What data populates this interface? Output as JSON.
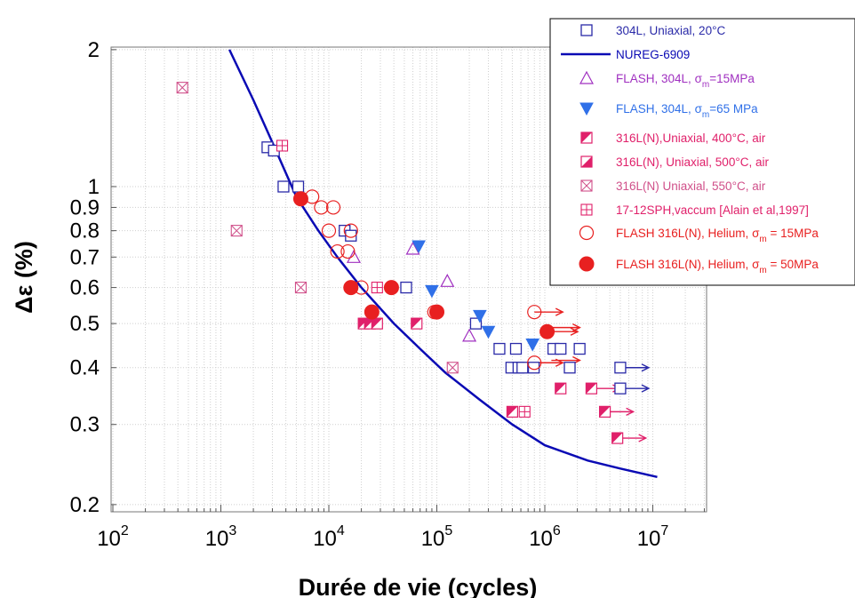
{
  "chart_data": {
    "type": "scatter",
    "xlabel": "Durée de vie (cycles)",
    "ylabel": "Δε (%)",
    "xscale": "log",
    "yscale": "log",
    "xlim": [
      100,
      30000000
    ],
    "ylim": [
      0.19,
      2.0
    ],
    "grid": true,
    "legend_position": "top-right",
    "x_ticks": [
      {
        "value": 100,
        "base": "10",
        "exp": "2"
      },
      {
        "value": 1000,
        "base": "10",
        "exp": "3"
      },
      {
        "value": 10000,
        "base": "10",
        "exp": "4"
      },
      {
        "value": 100000,
        "base": "10",
        "exp": "5"
      },
      {
        "value": 1000000,
        "base": "10",
        "exp": "6"
      },
      {
        "value": 10000000,
        "base": "10",
        "exp": "7"
      }
    ],
    "y_ticks": [
      {
        "value": 0.2,
        "label": "0.2"
      },
      {
        "value": 0.3,
        "label": "0.3"
      },
      {
        "value": 0.4,
        "label": "0.4"
      },
      {
        "value": 0.5,
        "label": "0.5"
      },
      {
        "value": 0.6,
        "label": "0.6"
      },
      {
        "value": 0.7,
        "label": "0.7"
      },
      {
        "value": 0.8,
        "label": "0.8"
      },
      {
        "value": 0.9,
        "label": "0.9"
      },
      {
        "value": 1.0,
        "label": "1"
      },
      {
        "value": 2.0,
        "label": "2"
      }
    ],
    "series": [
      {
        "id": "s304L",
        "name": "304L, Uniaxial, 20°C",
        "legend": [
          "304L, Uniaxial, 20°C"
        ],
        "marker": "square-open",
        "color": "#2a2aa8",
        "points": [
          [
            2700,
            1.22
          ],
          [
            3100,
            1.2
          ],
          [
            3800,
            1.0
          ],
          [
            5200,
            1.0
          ],
          [
            14000,
            0.8
          ],
          [
            16000,
            0.78
          ],
          [
            52000,
            0.6
          ],
          [
            230000,
            0.5
          ],
          [
            380000,
            0.44
          ],
          [
            490000,
            0.4
          ],
          [
            540000,
            0.44
          ],
          [
            570000,
            0.4
          ],
          [
            620000,
            0.4
          ],
          [
            790000,
            0.4
          ],
          [
            1200000,
            0.44
          ],
          [
            1400000,
            0.44
          ],
          [
            1700000,
            0.4
          ],
          [
            2100000,
            0.44
          ]
        ]
      },
      {
        "id": "sNUREG",
        "name": "NUREG-6909",
        "legend": [
          "NUREG-6909"
        ],
        "marker": "line",
        "color": "#0a0ab4",
        "points": [
          [
            1200,
            2.0
          ],
          [
            2000,
            1.55
          ],
          [
            3000,
            1.25
          ],
          [
            5000,
            0.95
          ],
          [
            8000,
            0.8
          ],
          [
            12000,
            0.7
          ],
          [
            20000,
            0.6
          ],
          [
            40000,
            0.5
          ],
          [
            70000,
            0.44
          ],
          [
            120000,
            0.39
          ],
          [
            250000,
            0.34
          ],
          [
            500000,
            0.3
          ],
          [
            1000000,
            0.27
          ],
          [
            2500000,
            0.25
          ],
          [
            5000000,
            0.24
          ],
          [
            11000000,
            0.23
          ]
        ]
      },
      {
        "id": "sFlash304L15",
        "name": "FLASH, 304L, σm=15MPa",
        "legend": [
          "FLASH, 304L, ",
          "σ",
          "m",
          "=15MPa"
        ],
        "marker": "triangle-up-open",
        "color": "#a030c0",
        "points": [
          [
            17000,
            0.7
          ],
          [
            60000,
            0.73
          ],
          [
            125000,
            0.62
          ],
          [
            200000,
            0.47
          ]
        ]
      },
      {
        "id": "sFlash304L65",
        "name": "FLASH, 304L, σm=65 MPa",
        "legend": [
          "FLASH, 304L, ",
          "σ",
          "m",
          "=65 MPa"
        ],
        "marker": "triangle-down-filled",
        "color": "#3070e8",
        "points": [
          [
            68000,
            0.74
          ],
          [
            90000,
            0.59
          ],
          [
            250000,
            0.52
          ],
          [
            300000,
            0.48
          ],
          [
            770000,
            0.45
          ]
        ]
      },
      {
        "id": "s316L400",
        "name": "316L(N),Uniaxial, 400°C, air",
        "legend": [
          "316L(N),Uniaxial, 400°C, air"
        ],
        "marker": "half-square-lower-left",
        "color": "#e0206a",
        "points": [
          [
            21000,
            0.5
          ],
          [
            24000,
            0.5
          ],
          [
            28000,
            0.5
          ],
          [
            65000,
            0.5
          ],
          [
            500000,
            0.32
          ],
          [
            1400000,
            0.36
          ],
          [
            2700000,
            0.36
          ],
          [
            3600000,
            0.32
          ],
          [
            4700000,
            0.28
          ]
        ]
      },
      {
        "id": "s316L500",
        "name": "316L(N), Uniaxial, 500°C, air",
        "legend": [
          "316L(N), Uniaxial, 500°C, air"
        ],
        "marker": "half-square-lower-right",
        "color": "#e0206a",
        "points": []
      },
      {
        "id": "s316L550",
        "name": "316L(N) Uniaxial, 550°C, air",
        "legend": [
          "316L(N) Uniaxial, 550°C, air"
        ],
        "marker": "square-x",
        "color": "#d0508a",
        "points": [
          [
            440,
            1.65
          ],
          [
            1400,
            0.8
          ],
          [
            5500,
            0.6
          ],
          [
            140000,
            0.4
          ]
        ]
      },
      {
        "id": "s1712",
        "name": "17-12SPH,vaccum [Alain et al,1997]",
        "legend": [
          "17-12SPH,vaccum [Alain et al,1997]"
        ],
        "marker": "square-plus",
        "color": "#e0206a",
        "points": [
          [
            3700,
            1.23
          ],
          [
            28000,
            0.6
          ],
          [
            650000,
            0.32
          ]
        ]
      },
      {
        "id": "sHe15",
        "name": "FLASH 316L(N), Helium, σm = 15MPa",
        "legend": [
          "FLASH 316L(N), Helium, ",
          "σ",
          "m",
          " = 15MPa"
        ],
        "marker": "circle-open",
        "color": "#e82020",
        "points": [
          [
            7000,
            0.95
          ],
          [
            8500,
            0.9
          ],
          [
            11000,
            0.9
          ],
          [
            10000,
            0.8
          ],
          [
            12000,
            0.72
          ],
          [
            15000,
            0.72
          ],
          [
            16000,
            0.8
          ],
          [
            20000,
            0.6
          ],
          [
            95000,
            0.53
          ],
          [
            800000,
            0.53
          ],
          [
            800000,
            0.41
          ]
        ]
      },
      {
        "id": "sHe50",
        "name": "FLASH 316L(N), Helium, σm = 50MPa",
        "legend": [
          "FLASH 316L(N), Helium, ",
          "σ",
          "m",
          " = 50MPa"
        ],
        "marker": "circle-filled",
        "color": "#e82020",
        "points": [
          [
            5500,
            0.94
          ],
          [
            16000,
            0.6
          ],
          [
            25000,
            0.53
          ],
          [
            38000,
            0.6
          ],
          [
            100000,
            0.53
          ],
          [
            1050000,
            0.48
          ]
        ]
      }
    ],
    "runouts": [
      {
        "x": 800000,
        "y": 0.53,
        "color": "#e82020"
      },
      {
        "x": 1150000,
        "y": 0.49,
        "color": "#e82020"
      },
      {
        "x": 1100000,
        "y": 0.48,
        "color": "#e82020"
      },
      {
        "x": 800000,
        "y": 0.41,
        "color": "#e82020"
      },
      {
        "x": 1150000,
        "y": 0.415,
        "color": "#e82020"
      },
      {
        "x": 2700000,
        "y": 0.36,
        "color": "#e0206a"
      },
      {
        "x": 3600000,
        "y": 0.32,
        "color": "#e0206a"
      },
      {
        "x": 4700000,
        "y": 0.28,
        "color": "#e0206a"
      },
      {
        "x": 5000000,
        "y": 0.4,
        "color": "#2a2aa8"
      },
      {
        "x": 5000000,
        "y": 0.36,
        "color": "#2a2aa8"
      }
    ],
    "extra_markers": [
      {
        "x": 5000000,
        "y": 0.4,
        "marker": "square-open",
        "color": "#2a2aa8"
      },
      {
        "x": 5000000,
        "y": 0.36,
        "marker": "square-open",
        "color": "#2a2aa8"
      }
    ]
  }
}
